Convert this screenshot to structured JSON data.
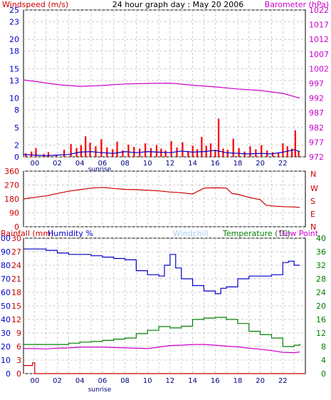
{
  "colors": {
    "background": "#ffffff",
    "frame": "#000000",
    "grid": "#c0c0c0",
    "axis_blue": "#0000cc",
    "axis_red": "#cc0000",
    "axis_magenta": "#cc00cc",
    "axis_green": "#008000",
    "tick_navy": "#000080",
    "windchill": "#aaccee"
  },
  "panels": {
    "top": {
      "title": "24 hour graph day : May 20 2006",
      "left_label": "Windspeed (m/s)",
      "right_label": "Barometer (hPa)"
    },
    "middle": {
      "direction_letters": [
        "N",
        "W",
        "S",
        "E",
        "N"
      ]
    },
    "bottom": {
      "rainfall_label": "Rainfall (mm)",
      "humidity_label": "Humidity %",
      "windchill_label": "Windchill",
      "temperature_label": "Temperature (°C)",
      "dewpoint_label": "Dew Point"
    },
    "hour_labels": [
      "00",
      "02",
      "04",
      "06",
      "08",
      "10",
      "12",
      "14",
      "16",
      "18",
      "20",
      "22"
    ],
    "sunrise_label": "sunrise"
  },
  "chart_data": [
    {
      "type": "line",
      "title": "24 hour graph day : May 20 2006",
      "xlabel": "",
      "x_unit": "hour of day",
      "xlim": [
        -1,
        24
      ],
      "y_axes": [
        {
          "label": "Windspeed (m/s)",
          "range": [
            0,
            25
          ],
          "ticks": [
            0,
            2,
            5,
            8,
            10,
            13,
            15,
            18,
            20,
            23,
            25
          ],
          "side": "left"
        },
        {
          "label": "Barometer (hPa)",
          "range": [
            972,
            1022
          ],
          "ticks": [
            972,
            977,
            982,
            987,
            992,
            997,
            1002,
            1007,
            1012,
            1017,
            1022
          ],
          "side": "right"
        }
      ],
      "series": [
        {
          "name": "Barometer (hPa)",
          "axis": "right",
          "color": "#cc00cc",
          "x": [
            -1,
            0,
            2,
            4,
            6,
            8,
            10,
            12,
            14,
            16,
            18,
            20,
            22,
            23.5
          ],
          "y": [
            998.2,
            997.7,
            996.6,
            996.0,
            996.3,
            996.8,
            997.0,
            997.1,
            996.4,
            995.8,
            995.1,
            994.6,
            993.6,
            992.0
          ]
        },
        {
          "name": "Wind gust (m/s)",
          "axis": "left",
          "color": "#ff0000",
          "style": "bars",
          "x": [
            -0.8,
            -0.3,
            0.1,
            0.8,
            1.2,
            1.9,
            2.6,
            3.2,
            3.7,
            4.1,
            4.5,
            4.9,
            5.4,
            5.9,
            6.4,
            6.9,
            7.3,
            7.8,
            8.3,
            8.8,
            9.3,
            9.8,
            10.3,
            10.8,
            11.2,
            11.6,
            12.1,
            12.6,
            13.1,
            13.6,
            14.0,
            14.4,
            14.8,
            15.2,
            15.6,
            16.0,
            16.3,
            16.7,
            17.1,
            17.6,
            18.1,
            18.6,
            19.1,
            19.6,
            20.1,
            20.6,
            21.1,
            21.6,
            22.0,
            22.4,
            22.8,
            23.1,
            23.4
          ],
          "y": [
            0.6,
            0.9,
            1.5,
            0.5,
            0.8,
            0.4,
            1.2,
            2.2,
            1.5,
            2.0,
            3.5,
            2.4,
            1.8,
            3.0,
            1.6,
            1.3,
            2.6,
            1.1,
            2.1,
            1.7,
            1.4,
            2.3,
            1.5,
            2.0,
            1.4,
            1.1,
            2.7,
            1.6,
            2.5,
            1.0,
            1.9,
            1.3,
            3.4,
            1.9,
            2.3,
            1.2,
            6.5,
            1.4,
            1.2,
            3.1,
            1.5,
            0.9,
            1.8,
            1.3,
            2.0,
            1.1,
            0.8,
            0.7,
            2.3,
            1.8,
            1.4,
            4.5,
            1.0
          ]
        },
        {
          "name": "Windspeed (m/s)",
          "axis": "left",
          "color": "#0000cc",
          "x": [
            -1,
            0,
            1,
            2,
            3,
            4,
            5,
            6,
            7,
            8,
            9,
            10,
            11,
            12,
            13,
            14,
            15,
            16,
            17,
            18,
            19,
            20,
            21,
            22,
            23,
            23.5
          ],
          "y": [
            0.4,
            0.3,
            0.2,
            0.3,
            0.4,
            0.8,
            0.9,
            0.7,
            0.6,
            0.9,
            0.7,
            0.9,
            0.8,
            0.7,
            1.0,
            0.8,
            0.9,
            1.1,
            0.7,
            0.6,
            0.5,
            0.6,
            0.5,
            0.8,
            1.2,
            0.9
          ]
        }
      ]
    },
    {
      "type": "line",
      "title": "",
      "xlabel": "",
      "x_unit": "hour of day",
      "xlim": [
        -1,
        24
      ],
      "y_axes": [
        {
          "label": "",
          "range": [
            0,
            360
          ],
          "ticks": [
            0,
            90,
            180,
            270,
            360
          ],
          "side": "left"
        }
      ],
      "series": [
        {
          "name": "Wind direction (°)",
          "axis": "left",
          "color": "#cc0000",
          "x": [
            -1,
            0,
            1,
            2,
            3,
            4,
            5,
            6,
            7,
            8,
            9,
            10,
            11,
            12,
            13,
            14,
            15,
            16,
            17,
            17.5,
            18,
            19,
            20,
            20.5,
            21,
            22,
            23,
            23.5
          ],
          "y": [
            180,
            190,
            200,
            215,
            230,
            240,
            250,
            255,
            248,
            242,
            240,
            236,
            232,
            225,
            220,
            212,
            250,
            252,
            250,
            215,
            210,
            190,
            175,
            140,
            135,
            130,
            128,
            125
          ]
        }
      ]
    },
    {
      "type": "line",
      "title": "",
      "xlabel": "",
      "x_unit": "hour of day",
      "xlim": [
        -1,
        24
      ],
      "y_axes": [
        {
          "label": "Rainfall (mm)",
          "range": [
            0,
            30
          ],
          "ticks": [
            0,
            3,
            6,
            9,
            12,
            15,
            18,
            21,
            24,
            27,
            30
          ],
          "side": "left",
          "color": "#cc0000"
        },
        {
          "label": "Humidity %",
          "range": [
            0,
            100
          ],
          "ticks": [
            0,
            10,
            20,
            30,
            40,
            50,
            60,
            70,
            80,
            90,
            100
          ],
          "side": "left",
          "color": "#0000cc"
        },
        {
          "label": "Temperature (°C)",
          "range": [
            0,
            40
          ],
          "ticks": [
            0,
            4,
            8,
            12,
            16,
            20,
            24,
            28,
            32,
            36,
            40
          ],
          "side": "right",
          "color": "#008000"
        }
      ],
      "series": [
        {
          "name": "Humidity %",
          "axis": "humidity",
          "color": "#0000cc",
          "x": [
            -1,
            0,
            1,
            2,
            3,
            4,
            5,
            6,
            7,
            8,
            9,
            10,
            11,
            11.5,
            12,
            12.5,
            13,
            14,
            15,
            16,
            16.5,
            17,
            18,
            19,
            20,
            21,
            22,
            22.5,
            23,
            23.5
          ],
          "y": [
            92,
            92,
            91,
            89,
            88,
            88,
            87,
            86,
            85,
            84,
            76,
            73,
            72,
            80,
            88,
            78,
            70,
            65,
            61,
            59,
            63,
            64,
            70,
            72,
            72,
            73,
            82,
            83,
            80,
            80
          ]
        },
        {
          "name": "Temperature (°C)",
          "axis": "temperature",
          "color": "#008000",
          "x": [
            -1,
            0,
            1,
            2,
            3,
            4,
            5,
            6,
            7,
            8,
            9,
            10,
            11,
            12,
            13,
            14,
            15,
            16,
            17,
            18,
            19,
            20,
            21,
            22,
            23,
            23.5
          ],
          "y": [
            8.6,
            8.6,
            8.6,
            8.6,
            9.0,
            9.3,
            9.5,
            9.8,
            10.2,
            10.5,
            11.8,
            12.8,
            13.9,
            13.5,
            14.0,
            16.0,
            16.4,
            16.6,
            16.0,
            14.8,
            12.5,
            11.5,
            10.5,
            8.0,
            8.4,
            8.8
          ]
        },
        {
          "name": "Dew Point",
          "axis": "temperature",
          "color": "#cc00cc",
          "x": [
            -1,
            0,
            1,
            2,
            3,
            4,
            5,
            6,
            7,
            8,
            9,
            10,
            11,
            12,
            13,
            14,
            15,
            16,
            17,
            18,
            19,
            20,
            21,
            22,
            23,
            23.5
          ],
          "y": [
            7.4,
            7.4,
            7.3,
            7.5,
            7.6,
            7.8,
            7.8,
            7.8,
            7.7,
            7.6,
            7.5,
            7.4,
            7.8,
            8.3,
            8.4,
            8.6,
            8.6,
            8.4,
            8.1,
            7.9,
            7.5,
            7.2,
            6.8,
            6.3,
            6.2,
            6.4
          ]
        },
        {
          "name": "Rainfall (mm)",
          "axis": "rainfall",
          "color": "#cc0000",
          "x": [
            -1,
            -0.2,
            -0.2,
            0,
            0,
            24
          ],
          "y": [
            1.8,
            1.8,
            2.4,
            2.4,
            0,
            0
          ]
        }
      ]
    }
  ]
}
